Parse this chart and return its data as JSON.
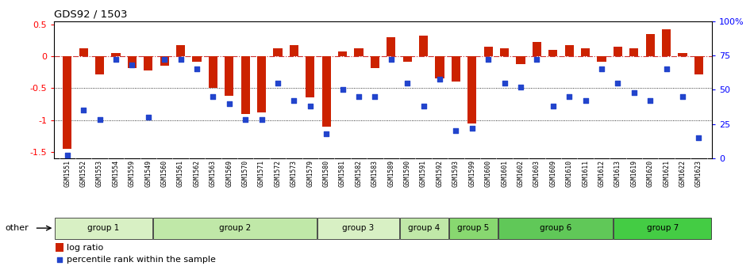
{
  "title": "GDS92 / 1503",
  "samples": [
    "GSM1551",
    "GSM1552",
    "GSM1553",
    "GSM1554",
    "GSM1559",
    "GSM1549",
    "GSM1560",
    "GSM1561",
    "GSM1562",
    "GSM1563",
    "GSM1569",
    "GSM1570",
    "GSM1571",
    "GSM1572",
    "GSM1573",
    "GSM1579",
    "GSM1580",
    "GSM1581",
    "GSM1582",
    "GSM1583",
    "GSM1589",
    "GSM1590",
    "GSM1591",
    "GSM1592",
    "GSM1593",
    "GSM1599",
    "GSM1600",
    "GSM1601",
    "GSM1602",
    "GSM1603",
    "GSM1609",
    "GSM1610",
    "GSM1611",
    "GSM1612",
    "GSM1613",
    "GSM1619",
    "GSM1620",
    "GSM1621",
    "GSM1622",
    "GSM1623"
  ],
  "log_ratio": [
    -1.45,
    0.12,
    -0.28,
    0.05,
    -0.18,
    -0.22,
    -0.15,
    0.18,
    -0.08,
    -0.5,
    -0.62,
    -0.9,
    -0.88,
    0.12,
    0.18,
    -0.65,
    -1.1,
    0.08,
    0.12,
    -0.18,
    0.3,
    -0.08,
    0.32,
    -0.35,
    -0.4,
    -1.05,
    0.15,
    0.12,
    -0.12,
    0.22,
    0.1,
    0.18,
    0.12,
    -0.08,
    0.15,
    0.12,
    0.35,
    0.42,
    0.05,
    -0.28
  ],
  "percentile_rank": [
    2,
    35,
    28,
    72,
    68,
    30,
    72,
    72,
    65,
    45,
    40,
    28,
    28,
    55,
    42,
    38,
    18,
    50,
    45,
    45,
    72,
    55,
    38,
    58,
    20,
    22,
    72,
    55,
    52,
    72,
    38,
    45,
    42,
    65,
    55,
    48,
    42,
    65,
    45,
    15
  ],
  "groups": [
    {
      "name": "group 1",
      "start": 0,
      "end": 6,
      "color": "#d8f0c4"
    },
    {
      "name": "group 2",
      "start": 6,
      "end": 16,
      "color": "#c0e8a8"
    },
    {
      "name": "group 3",
      "start": 16,
      "end": 21,
      "color": "#d8f0c4"
    },
    {
      "name": "group 4",
      "start": 21,
      "end": 24,
      "color": "#c0e8a8"
    },
    {
      "name": "group 5",
      "start": 24,
      "end": 27,
      "color": "#88d870"
    },
    {
      "name": "group 6",
      "start": 27,
      "end": 34,
      "color": "#60c858"
    },
    {
      "name": "group 7",
      "start": 34,
      "end": 40,
      "color": "#44cc44"
    }
  ],
  "bar_color": "#cc2200",
  "dot_color": "#2244cc",
  "ylim_left": [
    -1.6,
    0.55
  ],
  "ylim_right": [
    0,
    100
  ],
  "yticks_left": [
    0.5,
    0.0,
    -0.5,
    -1.0,
    -1.5
  ],
  "ytick_labels_left": [
    "0.5",
    "0",
    "-0.5",
    "-1",
    "-1.5"
  ],
  "yticks_right": [
    100,
    75,
    50,
    25,
    0
  ],
  "ytick_labels_right": [
    "100%",
    "75",
    "50",
    "25",
    "0"
  ],
  "plot_bg": "#ffffff",
  "label_bg": "#d8d8d8",
  "group_bar_bg": "#ffffff",
  "fig_bg": "#ffffff"
}
